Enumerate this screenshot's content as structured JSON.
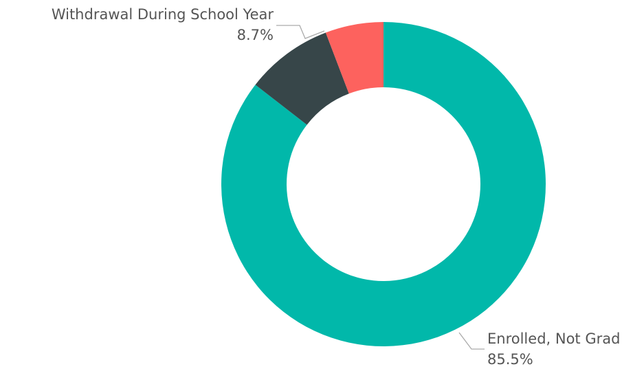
{
  "chart_data": {
    "type": "pie",
    "donut": true,
    "title": "",
    "categories": [
      "Enrolled, Not Grad",
      "Withdrawal During School Year",
      ""
    ],
    "values": [
      85.5,
      8.7,
      5.8
    ],
    "colors": [
      "#01b8aa",
      "#374649",
      "#fd625e"
    ],
    "data_labels": [
      {
        "category": "Enrolled, Not Grad",
        "value_text": "85.5%"
      },
      {
        "category": "Withdrawal During School Year",
        "value_text": "8.7%"
      }
    ],
    "legend": "none"
  }
}
